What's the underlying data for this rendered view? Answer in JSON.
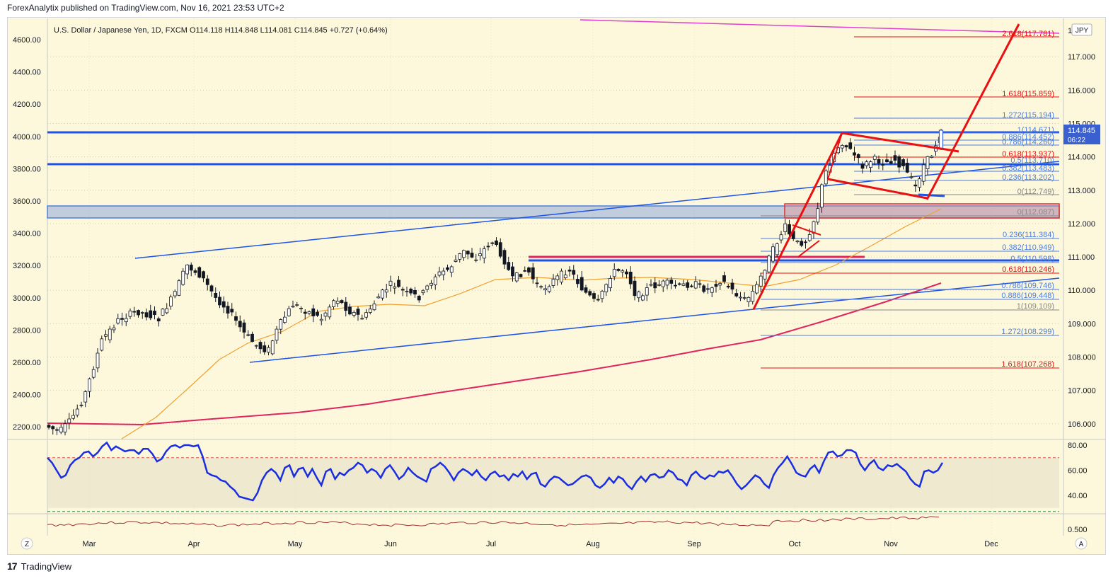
{
  "header": {
    "published": "ForexAnalytix published on TradingView.com, Nov 16, 2021 23:53 UTC+2"
  },
  "legend": {
    "symbol": "U.S. Dollar / Japanese Yen, 1D, FXCM",
    "ohlc": "O114.118 H114.848 L114.081 C114.845 +0.727 (+0.64%)"
  },
  "currency_badge": "JPY",
  "price_tag": {
    "price": "114.845",
    "countdown": "06:22"
  },
  "footer": {
    "brand": "TradingView"
  },
  "buttons": {
    "zoom": "Z",
    "auto": "A"
  },
  "colors": {
    "up": "#ffffff",
    "down": "#131722",
    "ma50": "#f0a030",
    "ma200": "#e0245e",
    "trend_blue": "#1e53e5",
    "flag_red": "#e81010",
    "fib_blue": "#4a7de0",
    "fib_red": "#e81010",
    "rsi": "#1a2ee0",
    "zone": "#4f7fdc",
    "tag_bg": "#3a5fcf"
  },
  "chart_data": {
    "type": "candlestick",
    "x_months": [
      "Mar",
      "Apr",
      "May",
      "Jun",
      "Jul",
      "Aug",
      "Sep",
      "Oct",
      "Nov",
      "Dec"
    ],
    "right_axis_ticks": [
      "117.000",
      "116.000",
      "115.000",
      "114.000",
      "113.000",
      "112.000",
      "111.000",
      "110.000",
      "109.000",
      "108.000",
      "107.000",
      "106.000"
    ],
    "right_axis_top_partial": "1",
    "left_axis_ticks": [
      "4600.00",
      "4400.00",
      "4200.00",
      "4000.00",
      "3800.00",
      "3600.00",
      "3400.00",
      "3200.00",
      "3000.00",
      "2800.00",
      "2600.00",
      "2400.00",
      "2200.00"
    ],
    "ylim": [
      105.55,
      118.15
    ],
    "last_price": 114.845,
    "fib_levels_upper": [
      {
        "label": "2.618(117.781)",
        "value": 117.781,
        "color": "red"
      },
      {
        "label": "1.618(115.859)",
        "value": 115.859,
        "color": "red"
      },
      {
        "label": "1.272(115.194)",
        "value": 115.194,
        "color": "blue"
      },
      {
        "label": "1(114.671)",
        "value": 114.671,
        "color": "blue"
      },
      {
        "label": "0.886(114.452)",
        "value": 114.452,
        "color": "blue"
      },
      {
        "label": "0.786(114.260)",
        "value": 114.26,
        "color": "blue"
      },
      {
        "label": "0.618(113.937)",
        "value": 113.937,
        "color": "red"
      },
      {
        "label": "0.5(113.710)",
        "value": 113.71,
        "color": "blue"
      },
      {
        "label": "0.382(113.483)",
        "value": 113.483,
        "color": "blue"
      },
      {
        "label": "0.236(113.202)",
        "value": 113.202,
        "color": "blue"
      },
      {
        "label": "0(112.749)",
        "value": 112.749,
        "color": "gray"
      }
    ],
    "fib_levels_lower": [
      {
        "label": "0(112.087)",
        "value": 112.087,
        "color": "gray"
      },
      {
        "label": "0.236(111.384)",
        "value": 111.384,
        "color": "blue"
      },
      {
        "label": "0.382(110.949)",
        "value": 110.949,
        "color": "blue"
      },
      {
        "label": "0.5(110.598)",
        "value": 110.598,
        "color": "blue"
      },
      {
        "label": "0.618(110.246)",
        "value": 110.246,
        "color": "red"
      },
      {
        "label": "0.786(109.746)",
        "value": 109.746,
        "color": "blue"
      },
      {
        "label": "0.886(109.448)",
        "value": 109.448,
        "color": "blue"
      },
      {
        "label": "1(109.109)",
        "value": 109.109,
        "color": "gray"
      },
      {
        "label": "1.272(108.299)",
        "value": 108.299,
        "color": "blue"
      },
      {
        "label": "1.618(107.268)",
        "value": 107.268,
        "color": "red"
      }
    ],
    "horizontal_levels": [
      114.7,
      113.75,
      110.6
    ],
    "resistance_zone": [
      112.05,
      112.4
    ],
    "rsi": {
      "ticks": [
        "80.00",
        "60.00",
        "40.00"
      ],
      "overbought": 70,
      "oversold": 30,
      "values": [
        70,
        66,
        60,
        54,
        56,
        64,
        68,
        70,
        74,
        75,
        71,
        74,
        79,
        82,
        76,
        79,
        77,
        75,
        76,
        76,
        73,
        77,
        77,
        73,
        67,
        69,
        75,
        79,
        80,
        78,
        80,
        80,
        79,
        80,
        71,
        58,
        56,
        55,
        52,
        51,
        47,
        44,
        39,
        38,
        37,
        36,
        42,
        52,
        58,
        61,
        58,
        52,
        62,
        64,
        55,
        61,
        62,
        55,
        61,
        54,
        48,
        59,
        61,
        53,
        58,
        56,
        60,
        62,
        66,
        64,
        58,
        61,
        59,
        54,
        61,
        64,
        59,
        53,
        56,
        62,
        58,
        55,
        53,
        51,
        61,
        63,
        66,
        63,
        58,
        52,
        58,
        61,
        59,
        56,
        60,
        55,
        52,
        57,
        59,
        55,
        56,
        52,
        57,
        55,
        59,
        53,
        57,
        58,
        49,
        47,
        52,
        55,
        54,
        51,
        48,
        49,
        52,
        55,
        56,
        54,
        48,
        46,
        49,
        54,
        50,
        55,
        53,
        48,
        45,
        51,
        55,
        51,
        56,
        57,
        54,
        55,
        60,
        58,
        53,
        52,
        48,
        56,
        59,
        55,
        53,
        56,
        55,
        59,
        58,
        60,
        55,
        49,
        45,
        48,
        52,
        56,
        54,
        49,
        46,
        56,
        62,
        66,
        71,
        65,
        58,
        56,
        55,
        61,
        64,
        58,
        67,
        74,
        75,
        71,
        72,
        76,
        76,
        74,
        65,
        60,
        65,
        68,
        62,
        60,
        64,
        63,
        65,
        62,
        59,
        53,
        49,
        47,
        59,
        60,
        58,
        60,
        66
      ]
    },
    "sub_indicator": {
      "ticks": [
        "0.500"
      ]
    }
  }
}
